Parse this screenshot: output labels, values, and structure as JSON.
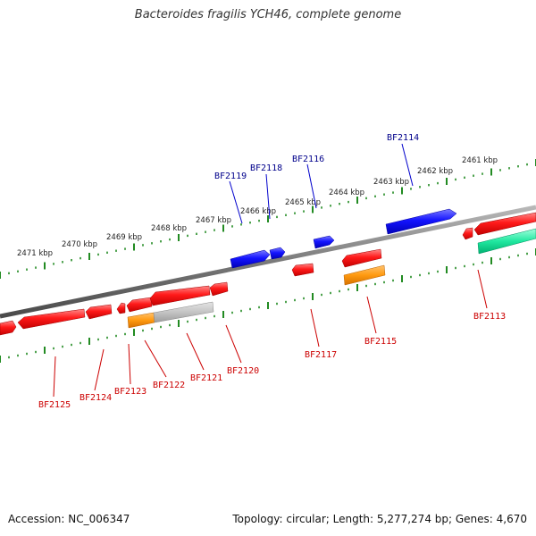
{
  "title": "Bacteroides fragilis YCH46, complete genome",
  "footer": {
    "accession": "Accession: NC_006347",
    "topology": "Topology: circular; Length: 5,277,274 bp; Genes: 4,670"
  },
  "colors": {
    "forward_gene": "#0000ee",
    "reverse_gene": "#ee0000",
    "forward_label": "#00008b",
    "reverse_label": "#cc0000",
    "orange_feature": "#ff8c00",
    "grey_feature": "#bbbbbb",
    "teal_feature": "#00dd99",
    "backbone": "#777777",
    "ticks": "#228b22"
  },
  "scale_labels": [
    "2471 kbp",
    "2470 kbp",
    "2469 kbp",
    "2468 kbp",
    "2467 kbp",
    "2466 kbp",
    "2465 kbp",
    "2464 kbp",
    "2463 kbp",
    "2462 kbp",
    "2461 kbp"
  ],
  "forward_genes": [
    "BF2119",
    "BF2118",
    "BF2116",
    "BF2114"
  ],
  "reverse_genes": [
    "BF2125",
    "BF2124",
    "BF2123",
    "BF2122",
    "BF2121",
    "BF2120",
    "BF2117",
    "BF2115",
    "BF2113"
  ]
}
